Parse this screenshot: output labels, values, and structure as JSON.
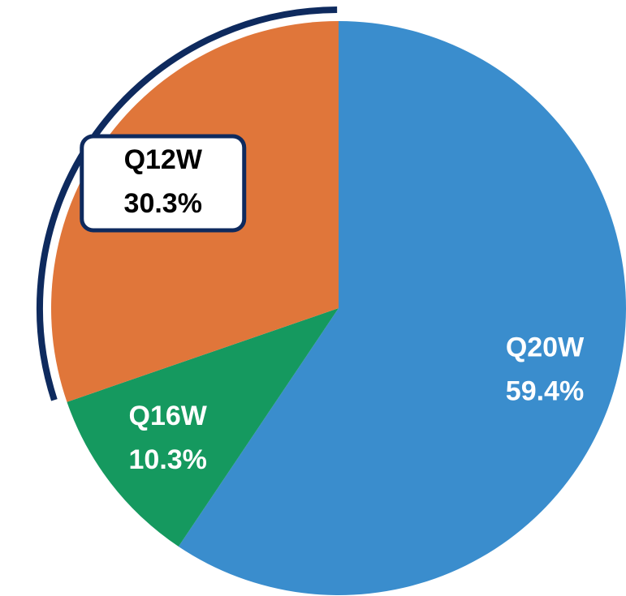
{
  "chart_data": {
    "type": "pie",
    "categories": [
      "Q20W",
      "Q16W",
      "Q12W"
    ],
    "values": [
      59.4,
      10.3,
      30.3
    ],
    "value_labels": [
      "59.4%",
      "10.3%",
      "30.3%"
    ],
    "colors": [
      "#3a8dcd",
      "#15995f",
      "#e0763a"
    ],
    "highlight": "Q12W",
    "highlight_color": "#0e2a5e"
  }
}
